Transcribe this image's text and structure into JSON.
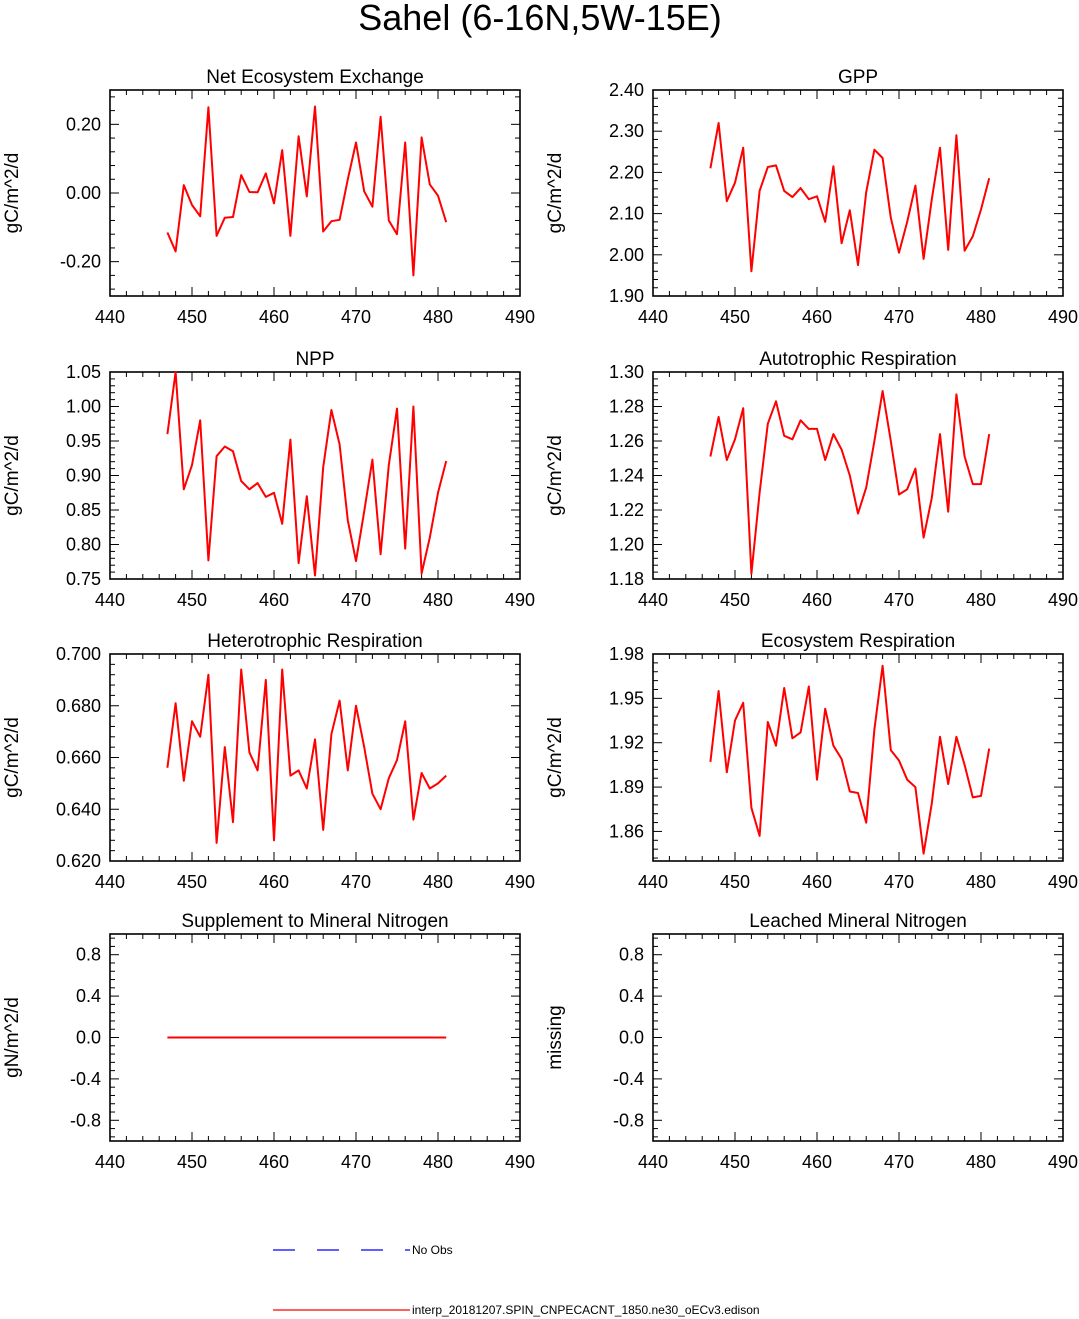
{
  "title": "Sahel (6-16N,5W-15E)",
  "colors": {
    "model": "#ff0000",
    "obs": "#0000ff",
    "axis": "#000000"
  },
  "legend": {
    "obs_label": "No Obs",
    "model_label": "interp_20181207.SPIN_CNPECACNT_1850.ne30_oECv3.edison"
  },
  "chart_data": [
    {
      "type": "line",
      "title": "Net Ecosystem Exchange",
      "ylabel": "gC/m^2/d",
      "xlim": [
        440,
        490
      ],
      "ylim": [
        -0.3,
        0.3
      ],
      "xticks": [
        440,
        450,
        460,
        470,
        480,
        490
      ],
      "yticks": [
        -0.2,
        0.0,
        0.2
      ],
      "ytick_labels": [
        "-0.20",
        "0.00",
        "0.20"
      ],
      "series": [
        {
          "name": "interp_20181207.SPIN_CNPECACNT_1850.ne30_oECv3.edison",
          "x": [
            447,
            448,
            449,
            450,
            451,
            452,
            453,
            454,
            455,
            456,
            457,
            458,
            459,
            460,
            461,
            462,
            463,
            464,
            465,
            466,
            467,
            468,
            469,
            470,
            471,
            472,
            473,
            474,
            475,
            476,
            477,
            478,
            479,
            480,
            481
          ],
          "values": [
            -0.115,
            -0.17,
            0.023,
            -0.035,
            -0.068,
            0.25,
            -0.125,
            -0.072,
            -0.07,
            0.052,
            0.003,
            0.002,
            0.057,
            -0.03,
            0.125,
            -0.125,
            0.165,
            -0.01,
            0.252,
            -0.112,
            -0.082,
            -0.078,
            0.04,
            0.147,
            0.005,
            -0.04,
            0.222,
            -0.08,
            -0.12,
            0.147,
            -0.24,
            0.162,
            0.025,
            -0.008,
            -0.085
          ]
        }
      ]
    },
    {
      "type": "line",
      "title": "GPP",
      "ylabel": "gC/m^2/d",
      "xlim": [
        440,
        490
      ],
      "ylim": [
        1.9,
        2.4
      ],
      "xticks": [
        440,
        450,
        460,
        470,
        480,
        490
      ],
      "yticks": [
        1.9,
        2.0,
        2.1,
        2.2,
        2.3,
        2.4
      ],
      "ytick_labels": [
        "1.90",
        "2.00",
        "2.10",
        "2.20",
        "2.30",
        "2.40"
      ],
      "series": [
        {
          "name": "interp_20181207.SPIN_CNPECACNT_1850.ne30_oECv3.edison",
          "x": [
            447,
            448,
            449,
            450,
            451,
            452,
            453,
            454,
            455,
            456,
            457,
            458,
            459,
            460,
            461,
            462,
            463,
            464,
            465,
            466,
            467,
            468,
            469,
            470,
            471,
            472,
            473,
            474,
            475,
            476,
            477,
            478,
            479,
            480,
            481
          ],
          "values": [
            2.21,
            2.32,
            2.13,
            2.175,
            2.26,
            1.96,
            2.155,
            2.213,
            2.217,
            2.155,
            2.14,
            2.162,
            2.135,
            2.142,
            2.08,
            2.215,
            2.028,
            2.108,
            1.975,
            2.152,
            2.255,
            2.235,
            2.09,
            2.005,
            2.08,
            2.168,
            1.99,
            2.135,
            2.26,
            2.012,
            2.29,
            2.01,
            2.045,
            2.11,
            2.186
          ]
        }
      ]
    },
    {
      "type": "line",
      "title": "NPP",
      "ylabel": "gC/m^2/d",
      "xlim": [
        440,
        490
      ],
      "ylim": [
        0.75,
        1.05
      ],
      "xticks": [
        440,
        450,
        460,
        470,
        480,
        490
      ],
      "yticks": [
        0.75,
        0.8,
        0.85,
        0.9,
        0.95,
        1.0,
        1.05
      ],
      "ytick_labels": [
        "0.75",
        "0.80",
        "0.85",
        "0.90",
        "0.95",
        "1.00",
        "1.05"
      ],
      "series": [
        {
          "name": "interp_20181207.SPIN_CNPECACNT_1850.ne30_oECv3.edison",
          "x": [
            447,
            448,
            449,
            450,
            451,
            452,
            453,
            454,
            455,
            456,
            457,
            458,
            459,
            460,
            461,
            462,
            463,
            464,
            465,
            466,
            467,
            468,
            469,
            470,
            471,
            472,
            473,
            474,
            475,
            476,
            477,
            478,
            479,
            480,
            481
          ],
          "values": [
            0.96,
            1.05,
            0.88,
            0.915,
            0.98,
            0.777,
            0.928,
            0.942,
            0.935,
            0.892,
            0.88,
            0.889,
            0.869,
            0.875,
            0.83,
            0.952,
            0.773,
            0.87,
            0.755,
            0.912,
            0.995,
            0.945,
            0.835,
            0.776,
            0.848,
            0.923,
            0.786,
            0.915,
            0.997,
            0.794,
            1.0,
            0.758,
            0.81,
            0.875,
            0.921
          ]
        }
      ]
    },
    {
      "type": "line",
      "title": "Autotrophic Respiration",
      "ylabel": "gC/m^2/d",
      "xlim": [
        440,
        490
      ],
      "ylim": [
        1.18,
        1.3
      ],
      "xticks": [
        440,
        450,
        460,
        470,
        480,
        490
      ],
      "yticks": [
        1.18,
        1.2,
        1.22,
        1.24,
        1.26,
        1.28,
        1.3
      ],
      "ytick_labels": [
        "1.18",
        "1.20",
        "1.22",
        "1.24",
        "1.26",
        "1.28",
        "1.30"
      ],
      "series": [
        {
          "name": "interp_20181207.SPIN_CNPECACNT_1850.ne30_oECv3.edison",
          "x": [
            447,
            448,
            449,
            450,
            451,
            452,
            453,
            454,
            455,
            456,
            457,
            458,
            459,
            460,
            461,
            462,
            463,
            464,
            465,
            466,
            467,
            468,
            469,
            470,
            471,
            472,
            473,
            474,
            475,
            476,
            477,
            478,
            479,
            480,
            481
          ],
          "values": [
            1.251,
            1.274,
            1.249,
            1.261,
            1.279,
            1.183,
            1.23,
            1.27,
            1.283,
            1.263,
            1.261,
            1.272,
            1.267,
            1.267,
            1.249,
            1.264,
            1.255,
            1.24,
            1.218,
            1.233,
            1.26,
            1.289,
            1.26,
            1.229,
            1.232,
            1.244,
            1.204,
            1.227,
            1.264,
            1.219,
            1.287,
            1.251,
            1.235,
            1.235,
            1.264
          ]
        }
      ]
    },
    {
      "type": "line",
      "title": "Heterotrophic Respiration",
      "ylabel": "gC/m^2/d",
      "xlim": [
        440,
        490
      ],
      "ylim": [
        0.62,
        0.7
      ],
      "xticks": [
        440,
        450,
        460,
        470,
        480,
        490
      ],
      "yticks": [
        0.62,
        0.64,
        0.66,
        0.68,
        0.7
      ],
      "ytick_labels": [
        "0.620",
        "0.640",
        "0.660",
        "0.680",
        "0.700"
      ],
      "series": [
        {
          "name": "interp_20181207.SPIN_CNPECACNT_1850.ne30_oECv3.edison",
          "x": [
            447,
            448,
            449,
            450,
            451,
            452,
            453,
            454,
            455,
            456,
            457,
            458,
            459,
            460,
            461,
            462,
            463,
            464,
            465,
            466,
            467,
            468,
            469,
            470,
            471,
            472,
            473,
            474,
            475,
            476,
            477,
            478,
            479,
            480,
            481
          ],
          "values": [
            0.656,
            0.681,
            0.651,
            0.674,
            0.668,
            0.692,
            0.627,
            0.664,
            0.635,
            0.694,
            0.662,
            0.655,
            0.69,
            0.628,
            0.694,
            0.653,
            0.655,
            0.648,
            0.667,
            0.632,
            0.669,
            0.682,
            0.655,
            0.68,
            0.664,
            0.646,
            0.64,
            0.652,
            0.659,
            0.674,
            0.636,
            0.654,
            0.648,
            0.65,
            0.653
          ]
        }
      ]
    },
    {
      "type": "line",
      "title": "Ecosystem Respiration",
      "ylabel": "gC/m^2/d",
      "xlim": [
        440,
        490
      ],
      "ylim": [
        1.84,
        1.98
      ],
      "xticks": [
        440,
        450,
        460,
        470,
        480,
        490
      ],
      "yticks": [
        1.86,
        1.89,
        1.92,
        1.95,
        1.98
      ],
      "ytick_labels": [
        "1.86",
        "1.89",
        "1.92",
        "1.95",
        "1.98"
      ],
      "series": [
        {
          "name": "interp_20181207.SPIN_CNPECACNT_1850.ne30_oECv3.edison",
          "x": [
            447,
            448,
            449,
            450,
            451,
            452,
            453,
            454,
            455,
            456,
            457,
            458,
            459,
            460,
            461,
            462,
            463,
            464,
            465,
            466,
            467,
            468,
            469,
            470,
            471,
            472,
            473,
            474,
            475,
            476,
            477,
            478,
            479,
            480,
            481
          ],
          "values": [
            1.907,
            1.955,
            1.9,
            1.935,
            1.947,
            1.876,
            1.857,
            1.934,
            1.918,
            1.957,
            1.923,
            1.927,
            1.958,
            1.895,
            1.943,
            1.918,
            1.909,
            1.887,
            1.886,
            1.866,
            1.929,
            1.972,
            1.915,
            1.908,
            1.895,
            1.89,
            1.845,
            1.879,
            1.924,
            1.892,
            1.924,
            1.905,
            1.883,
            1.884,
            1.916
          ]
        }
      ]
    },
    {
      "type": "line",
      "title": "Supplement to Mineral Nitrogen",
      "ylabel": "gN/m^2/d",
      "xlim": [
        440,
        490
      ],
      "ylim": [
        -1.0,
        1.0
      ],
      "xticks": [
        440,
        450,
        460,
        470,
        480,
        490
      ],
      "yticks": [
        -0.8,
        -0.4,
        0.0,
        0.4,
        0.8
      ],
      "ytick_labels": [
        "-0.8",
        "-0.4",
        "0.0",
        "0.4",
        "0.8"
      ],
      "series": [
        {
          "name": "interp_20181207.SPIN_CNPECACNT_1850.ne30_oECv3.edison",
          "x": [
            447,
            481
          ],
          "values": [
            0.0,
            0.0
          ]
        }
      ]
    },
    {
      "type": "line",
      "title": "Leached Mineral Nitrogen",
      "ylabel": "missing",
      "xlim": [
        440,
        490
      ],
      "ylim": [
        -1.0,
        1.0
      ],
      "xticks": [
        440,
        450,
        460,
        470,
        480,
        490
      ],
      "yticks": [
        -0.8,
        -0.4,
        0.0,
        0.4,
        0.8
      ],
      "ytick_labels": [
        "-0.8",
        "-0.4",
        "0.0",
        "0.4",
        "0.8"
      ],
      "series": []
    }
  ]
}
